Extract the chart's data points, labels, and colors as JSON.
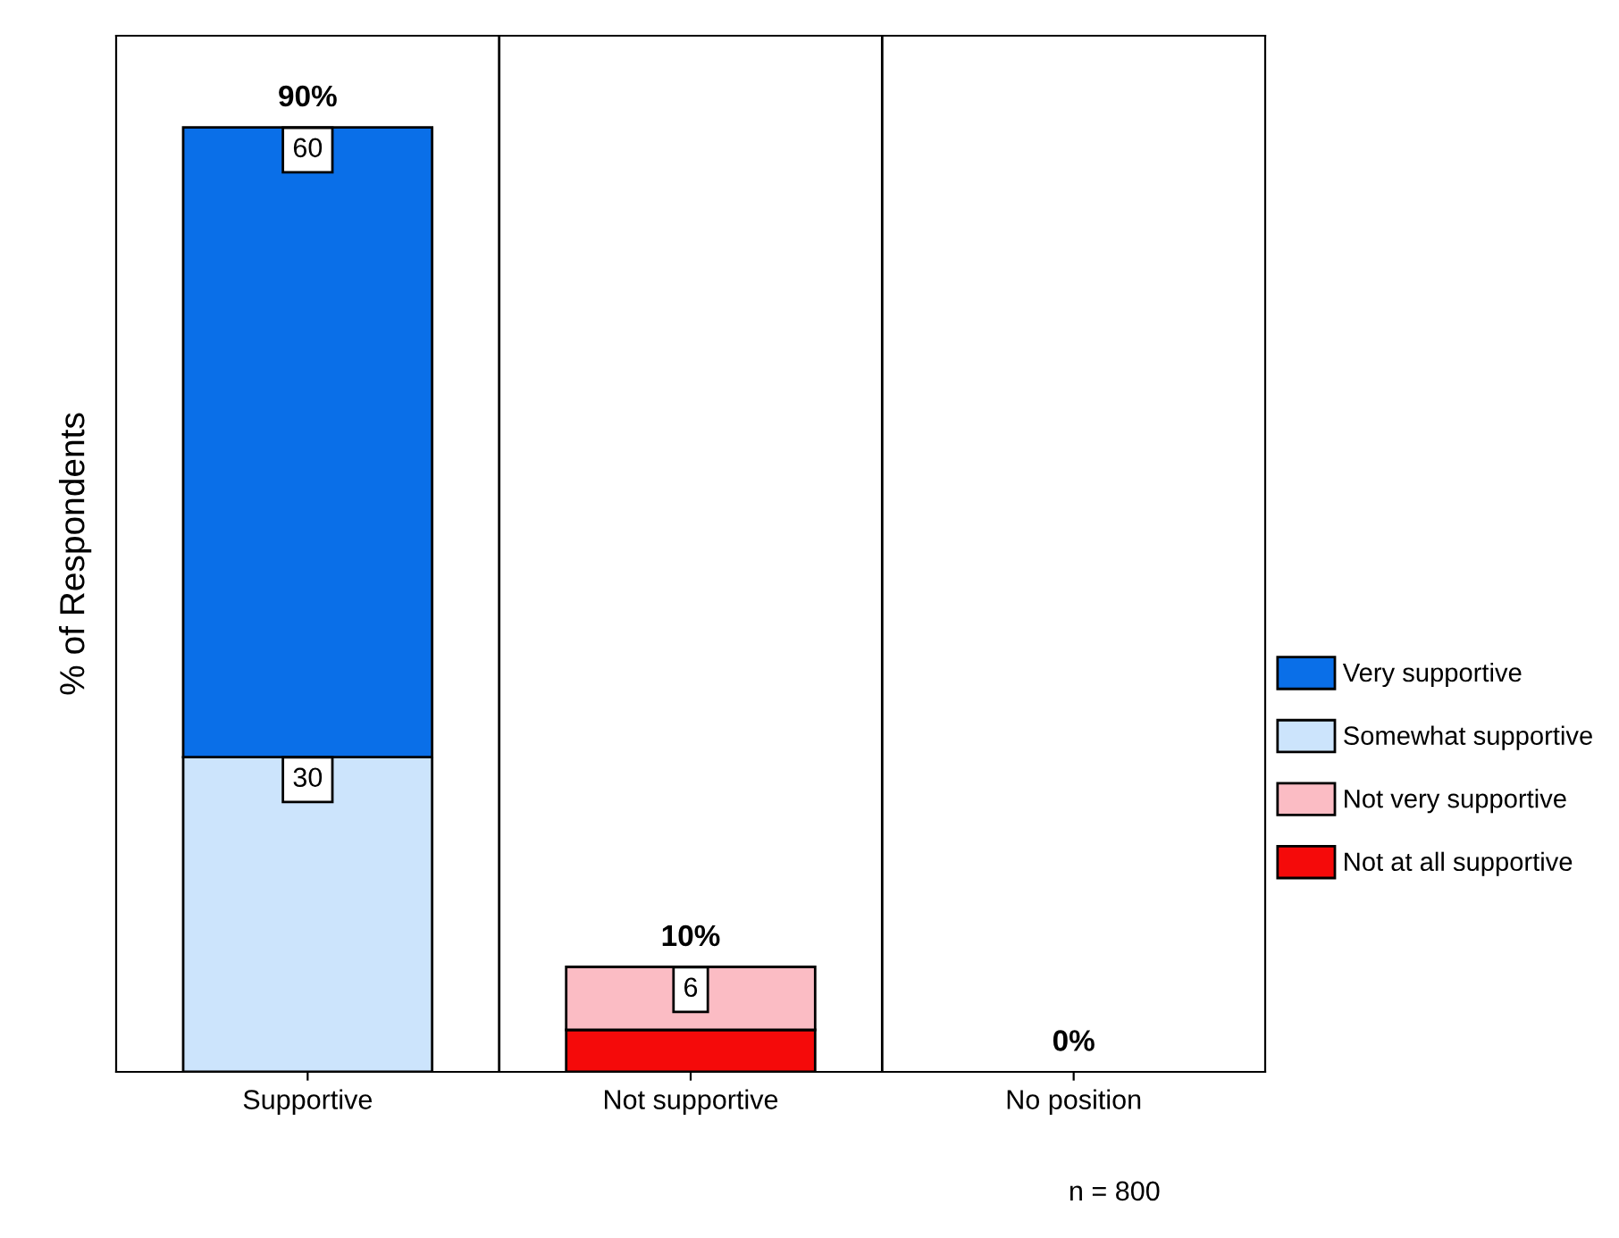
{
  "chart_data": {
    "type": "bar",
    "stacked": true,
    "ylabel": "% of Respondents",
    "categories": [
      "Supportive",
      "Not supportive",
      "No position"
    ],
    "series": [
      {
        "name": "Not at all supportive",
        "color": "#f50a0a",
        "values": [
          0,
          4,
          0
        ],
        "value_labels": [
          null,
          null,
          null
        ]
      },
      {
        "name": "Not very supportive",
        "color": "#fbbcc4",
        "values": [
          0,
          6,
          0
        ],
        "value_labels": [
          null,
          "6",
          null
        ]
      },
      {
        "name": "Somewhat supportive",
        "color": "#cce4fc",
        "values": [
          30,
          0,
          0
        ],
        "value_labels": [
          "30",
          null,
          null
        ]
      },
      {
        "name": "Very supportive",
        "color": "#0a6fe8",
        "values": [
          60,
          0,
          0
        ],
        "value_labels": [
          "60",
          null,
          null
        ]
      }
    ],
    "totals": [
      "90%",
      "10%",
      "0%"
    ],
    "annotations": [
      "n = 800"
    ],
    "legend": "right",
    "grid": false,
    "tick_labels": "x"
  }
}
